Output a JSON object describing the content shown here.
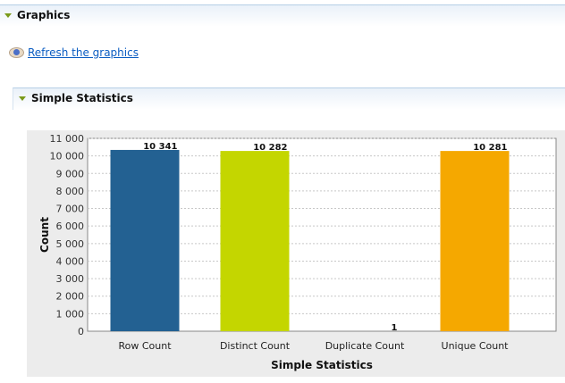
{
  "sections": {
    "graphics": "Graphics",
    "simple_statistics": "Simple Statistics"
  },
  "refresh_link": "Refresh the graphics",
  "icons": {
    "expand": "triangle-down-icon",
    "refresh": "eye-icon"
  },
  "chart_data": {
    "type": "bar",
    "categories": [
      "Row Count",
      "Distinct Count",
      "Duplicate Count",
      "Unique Count"
    ],
    "values": [
      10341,
      10282,
      1,
      10281
    ],
    "value_labels": [
      "10 341",
      "10 282",
      "1",
      "10 281"
    ],
    "colors": [
      "#236192",
      "#c4d600",
      "#888888",
      "#f5a800"
    ],
    "xlabel": "Simple Statistics",
    "ylabel": "Count",
    "ylim": [
      0,
      11000
    ],
    "yticks": [
      0,
      1000,
      2000,
      3000,
      4000,
      5000,
      6000,
      7000,
      8000,
      9000,
      10000,
      11000
    ],
    "ytick_labels": [
      "0",
      "1 000",
      "2 000",
      "3 000",
      "4 000",
      "5 000",
      "6 000",
      "7 000",
      "8 000",
      "9 000",
      "10 000",
      "11 000"
    ],
    "grid": true,
    "legend": "none"
  }
}
